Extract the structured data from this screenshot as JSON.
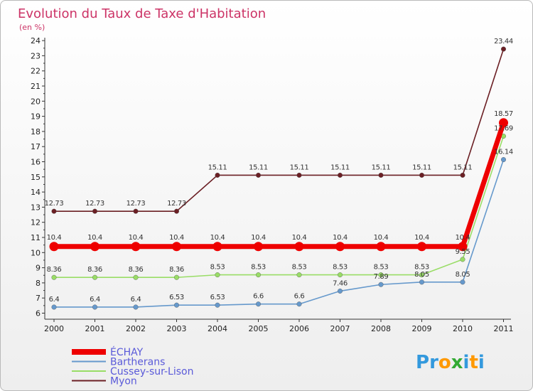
{
  "chart_data": {
    "type": "line",
    "title": "Evolution du Taux de Taxe d'Habitation",
    "unit_label": "(en %)",
    "x": [
      "2000",
      "2001",
      "2002",
      "2003",
      "2004",
      "2005",
      "2006",
      "2007",
      "2008",
      "2009",
      "2010",
      "2011"
    ],
    "ylim": [
      6,
      24
    ],
    "yticks": [
      "6",
      "7",
      "8",
      "9",
      "10",
      "11",
      "12",
      "13",
      "14",
      "15",
      "16",
      "17",
      "18",
      "19",
      "20",
      "21",
      "22",
      "23",
      "24"
    ],
    "grid": false,
    "legend_position": "bottom-left",
    "series": [
      {
        "name": "Myon",
        "color": "#6b1f24",
        "values": [
          12.73,
          12.73,
          12.73,
          12.73,
          15.11,
          15.11,
          15.11,
          15.11,
          15.11,
          15.11,
          15.11,
          23.44
        ],
        "labels": [
          "12.73",
          "12.73",
          "12.73",
          "12.73",
          "15.11",
          "15.11",
          "15.11",
          "15.11",
          "15.11",
          "15.11",
          "15.11",
          "23.44"
        ]
      },
      {
        "name": "Cussey-sur-Lison",
        "color": "#99dd66",
        "values": [
          8.36,
          8.36,
          8.36,
          8.36,
          8.53,
          8.53,
          8.53,
          8.53,
          8.53,
          8.53,
          9.55,
          17.69
        ],
        "labels": [
          "8.36",
          "8.36",
          "8.36",
          "8.36",
          "8.53",
          "8.53",
          "8.53",
          "8.53",
          "8.53",
          "8.53",
          "9.55",
          "17.69"
        ]
      },
      {
        "name": "Bartherans",
        "color": "#6699cc",
        "values": [
          6.4,
          6.4,
          6.4,
          6.53,
          6.53,
          6.6,
          6.6,
          7.46,
          7.89,
          8.05,
          8.05,
          16.14
        ],
        "labels": [
          "6.4",
          "6.4",
          "6.4",
          "6.53",
          "6.53",
          "6.6",
          "6.6",
          "7.46",
          "7.89",
          "8.05",
          "8.05",
          "16.14"
        ]
      },
      {
        "name": "ÉCHAY",
        "color": "#ee0000",
        "values": [
          10.4,
          10.4,
          10.4,
          10.4,
          10.4,
          10.4,
          10.4,
          10.4,
          10.4,
          10.4,
          10.4,
          18.57
        ],
        "labels": [
          "10.4",
          "10.4",
          "10.4",
          "10.4",
          "10.4",
          "10.4",
          "10.4",
          "10.4",
          "10.4",
          "10.4",
          "10.4",
          "18.57"
        ]
      }
    ],
    "legend": [
      "ÉCHAY",
      "Bartherans",
      "Cussey-sur-Lison",
      "Myon"
    ]
  },
  "brand": {
    "letters": [
      "P",
      "r",
      "o",
      "x",
      "i",
      "t",
      "i"
    ],
    "colors": [
      "#3399dd",
      "#3399dd",
      "#ff9900",
      "#33aa33",
      "#3399dd",
      "#ff9900",
      "#3399dd"
    ]
  }
}
